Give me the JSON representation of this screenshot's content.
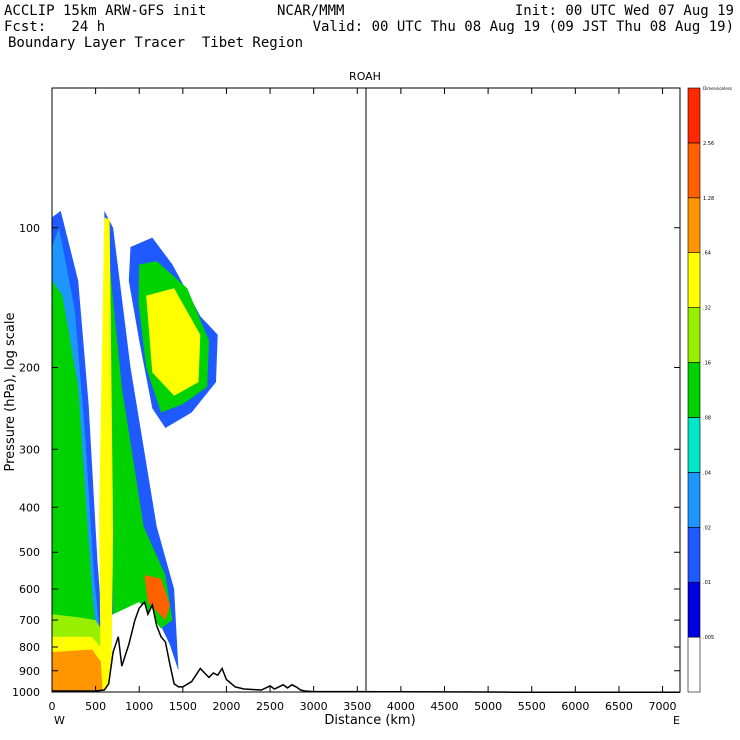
{
  "header": {
    "line1_left": "ACCLIP 15km ARW-GFS init",
    "line1_center": "NCAR/MMM",
    "line1_right": "Init: 00 UTC Wed 07 Aug 19",
    "line2_left": "Fcst:   24 h",
    "line2_right": "Valid: 00 UTC Thu 08 Aug 19 (09 JST Thu 08 Aug 19)",
    "line3_left": "Boundary Layer Tracer  Tibet Region"
  },
  "chart_data": {
    "type": "heatmap",
    "title": "ROAH",
    "xlabel": "Distance (km)",
    "ylabel": "Pressure (hPa), log scale",
    "x_end_labels": {
      "left": "W",
      "right": "E"
    },
    "xlim": [
      0,
      7200
    ],
    "ylim": [
      1000,
      50
    ],
    "y_scale": "log",
    "x_ticks": [
      0,
      500,
      1000,
      1500,
      2000,
      2500,
      3000,
      3500,
      4000,
      4500,
      5000,
      5500,
      6000,
      6500,
      7000
    ],
    "y_ticks": [
      100,
      200,
      300,
      400,
      500,
      600,
      700,
      800,
      900,
      1000
    ],
    "vertical_marker_x": 3600,
    "colorbar": {
      "unit_label": "Dimensionless",
      "levels": [
        ".005",
        ".01",
        ".02",
        ".04",
        ".08",
        ".16",
        ".32",
        ".64",
        "1.28",
        "2.56"
      ],
      "colors": [
        "#ffffff",
        "#0000e0",
        "#1e5aff",
        "#1e96ff",
        "#00e6c8",
        "#00d200",
        "#96f000",
        "#ffff00",
        "#ff9600",
        "#ff6000",
        "#ff2800"
      ]
    },
    "terrain_profile": {
      "x": [
        0,
        200,
        500,
        600,
        650,
        700,
        760,
        800,
        880,
        950,
        1000,
        1060,
        1100,
        1150,
        1200,
        1250,
        1300,
        1350,
        1400,
        1450,
        1500,
        1600,
        1700,
        1750,
        1800,
        1850,
        1900,
        1950,
        2000,
        2100,
        2200,
        2400,
        2500,
        2550,
        2600,
        2650,
        2700,
        2750,
        2800,
        2850,
        2900,
        3000,
        3500,
        4000,
        5000,
        5300,
        6000,
        7000,
        7200
      ],
      "p": [
        995,
        995,
        995,
        990,
        960,
        820,
        760,
        880,
        790,
        700,
        660,
        640,
        680,
        650,
        720,
        760,
        780,
        870,
        960,
        975,
        975,
        950,
        890,
        910,
        930,
        910,
        920,
        890,
        940,
        975,
        985,
        990,
        970,
        985,
        975,
        965,
        980,
        965,
        975,
        990,
        995,
        998,
        998,
        999,
        1000,
        1001,
        1001,
        1001,
        1001
      ]
    },
    "plumes": [
      {
        "name": "western-tall-column",
        "level": 2,
        "points": [
          [
            0,
            95
          ],
          [
            100,
            92
          ],
          [
            300,
            130
          ],
          [
            420,
            240
          ],
          [
            520,
            520
          ],
          [
            600,
            820
          ],
          [
            0,
            820
          ]
        ]
      },
      {
        "name": "western-tall-column",
        "level": 3,
        "points": [
          [
            0,
            110
          ],
          [
            80,
            100
          ],
          [
            260,
            150
          ],
          [
            380,
            280
          ],
          [
            480,
            560
          ],
          [
            560,
            780
          ],
          [
            0,
            800
          ]
        ]
      },
      {
        "name": "western-tall-column",
        "level": 5,
        "points": [
          [
            0,
            130
          ],
          [
            120,
            140
          ],
          [
            300,
            220
          ],
          [
            400,
            420
          ],
          [
            470,
            640
          ],
          [
            520,
            780
          ],
          [
            0,
            790
          ]
        ]
      },
      {
        "name": "boundary-layer-base",
        "level": 6,
        "points": [
          [
            0,
            680
          ],
          [
            300,
            690
          ],
          [
            500,
            700
          ],
          [
            620,
            760
          ],
          [
            600,
            990
          ],
          [
            0,
            995
          ]
        ]
      },
      {
        "name": "boundary-layer-base",
        "level": 7,
        "points": [
          [
            0,
            760
          ],
          [
            450,
            760
          ],
          [
            560,
            800
          ],
          [
            580,
            990
          ],
          [
            0,
            995
          ]
        ]
      },
      {
        "name": "boundary-layer-base",
        "level": 8,
        "points": [
          [
            0,
            820
          ],
          [
            460,
            810
          ],
          [
            560,
            860
          ],
          [
            580,
            990
          ],
          [
            0,
            995
          ]
        ]
      },
      {
        "name": "upper-anvil",
        "level": 2,
        "points": [
          [
            900,
            110
          ],
          [
            1150,
            105
          ],
          [
            1380,
            120
          ],
          [
            1700,
            155
          ],
          [
            1900,
            170
          ],
          [
            1880,
            215
          ],
          [
            1600,
            250
          ],
          [
            1300,
            270
          ],
          [
            1150,
            245
          ],
          [
            1000,
            175
          ],
          [
            880,
            130
          ]
        ]
      },
      {
        "name": "upper-anvil",
        "level": 5,
        "points": [
          [
            1000,
            120
          ],
          [
            1200,
            118
          ],
          [
            1550,
            135
          ],
          [
            1800,
            175
          ],
          [
            1780,
            220
          ],
          [
            1500,
            240
          ],
          [
            1250,
            250
          ],
          [
            1080,
            200
          ],
          [
            990,
            145
          ]
        ]
      },
      {
        "name": "upper-anvil",
        "level": 7,
        "points": [
          [
            1080,
            140
          ],
          [
            1400,
            135
          ],
          [
            1700,
            170
          ],
          [
            1680,
            215
          ],
          [
            1400,
            230
          ],
          [
            1150,
            205
          ]
        ]
      },
      {
        "name": "rising-filament",
        "level": 2,
        "points": [
          [
            600,
            92
          ],
          [
            700,
            100
          ],
          [
            900,
            200
          ],
          [
            1200,
            440
          ],
          [
            1400,
            600
          ],
          [
            1450,
            900
          ],
          [
            1350,
            790
          ],
          [
            1150,
            660
          ],
          [
            900,
            600
          ],
          [
            650,
            700
          ]
        ]
      },
      {
        "name": "rising-filament",
        "level": 5,
        "points": [
          [
            640,
            110
          ],
          [
            800,
            220
          ],
          [
            1050,
            440
          ],
          [
            1300,
            560
          ],
          [
            1380,
            700
          ],
          [
            1250,
            730
          ],
          [
            1000,
            640
          ],
          [
            700,
            680
          ]
        ]
      },
      {
        "name": "rising-filament",
        "level": 7,
        "points": [
          [
            600,
            95
          ],
          [
            660,
            96
          ],
          [
            700,
            450
          ],
          [
            680,
            990
          ],
          [
            560,
            990
          ],
          [
            540,
            420
          ]
        ]
      },
      {
        "name": "rising-filament",
        "level": 9,
        "points": [
          [
            1060,
            560
          ],
          [
            1250,
            570
          ],
          [
            1350,
            650
          ],
          [
            1300,
            700
          ],
          [
            1100,
            640
          ]
        ]
      }
    ]
  }
}
